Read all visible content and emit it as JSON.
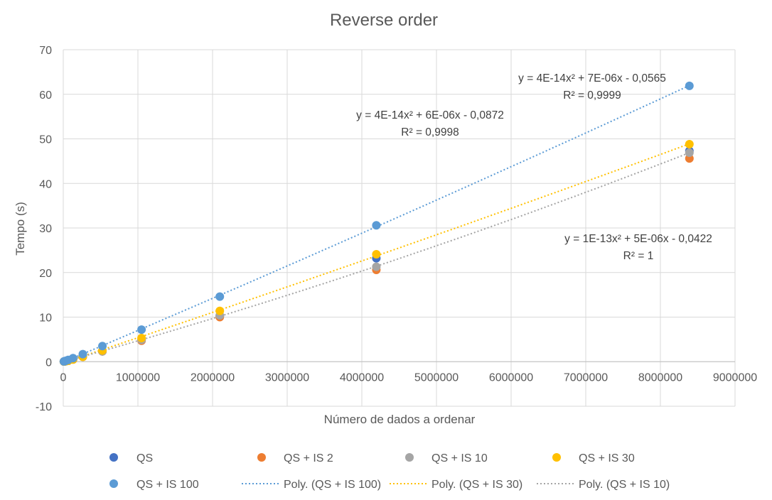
{
  "chart_data": {
    "type": "scatter",
    "title": "Reverse order",
    "xlabel": "Número de dados a ordenar",
    "ylabel": "Tempo (s)",
    "xlim": [
      0,
      9000000
    ],
    "ylim": [
      -10,
      70
    ],
    "x_ticks": [
      "0",
      "1000000",
      "2000000",
      "3000000",
      "4000000",
      "5000000",
      "6000000",
      "7000000",
      "8000000",
      "9000000"
    ],
    "y_ticks": [
      "-10",
      "0",
      "10",
      "20",
      "30",
      "40",
      "50",
      "60",
      "70"
    ],
    "grid": true,
    "legend_position": "bottom",
    "x": [
      8192,
      16384,
      32768,
      65536,
      131072,
      262144,
      524288,
      1048576,
      2097152,
      4194304,
      8388608
    ],
    "series": [
      {
        "name": "QS",
        "color": "#4472C4",
        "values": [
          0.03,
          0.05,
          0.1,
          0.2,
          0.5,
          1.2,
          2.4,
          4.9,
          10.3,
          23.2,
          47.3
        ]
      },
      {
        "name": "QS + IS 2",
        "color": "#ED7D31",
        "values": [
          0.03,
          0.05,
          0.1,
          0.2,
          0.5,
          1.1,
          2.3,
          4.7,
          10.0,
          20.6,
          45.6
        ]
      },
      {
        "name": "QS + IS 10",
        "color": "#A5A5A5",
        "values": [
          0.03,
          0.05,
          0.1,
          0.2,
          0.5,
          1.1,
          2.3,
          4.9,
          10.4,
          21.3,
          46.9
        ]
      },
      {
        "name": "QS + IS 30",
        "color": "#FFC000",
        "values": [
          0.03,
          0.05,
          0.1,
          0.2,
          0.5,
          1.1,
          2.5,
          5.3,
          11.4,
          24.1,
          48.8
        ]
      },
      {
        "name": "QS + IS 100",
        "color": "#5B9BD5",
        "values": [
          0.05,
          0.1,
          0.2,
          0.4,
          0.8,
          1.7,
          3.5,
          7.2,
          14.6,
          30.6,
          61.9
        ]
      }
    ],
    "trendlines": [
      {
        "name": "Poly. (QS + IS 100)",
        "series": "QS + IS 100",
        "color": "#5B9BD5",
        "style": "dotted",
        "equation": "y = 4E-14x² + 7E-06x - 0,0565",
        "r2": "R² = 0,9999"
      },
      {
        "name": "Poly. (QS + IS 30)",
        "series": "QS + IS 30",
        "color": "#FFC000",
        "style": "dotted",
        "equation": "y = 4E-14x² + 6E-06x - 0,0872",
        "r2": "R² = 0,9998"
      },
      {
        "name": "Poly. (QS + IS 10)",
        "series": "QS + IS 10",
        "color": "#A5A5A5",
        "style": "dotted",
        "equation": "y = 1E-13x² + 5E-06x - 0,0422",
        "r2": "R² = 1"
      }
    ]
  },
  "legend": {
    "items": [
      {
        "label": "QS",
        "kind": "marker",
        "color": "#4472C4"
      },
      {
        "label": "QS + IS 2",
        "kind": "marker",
        "color": "#ED7D31"
      },
      {
        "label": "QS + IS 10",
        "kind": "marker",
        "color": "#A5A5A5"
      },
      {
        "label": "QS + IS 30",
        "kind": "marker",
        "color": "#FFC000"
      },
      {
        "label": "QS + IS 100",
        "kind": "marker",
        "color": "#5B9BD5"
      },
      {
        "label": "Poly. (QS + IS 100)",
        "kind": "line",
        "color": "#5B9BD5"
      },
      {
        "label": "Poly. (QS + IS 30)",
        "kind": "line",
        "color": "#FFC000"
      },
      {
        "label": "Poly. (QS + IS 10)",
        "kind": "line",
        "color": "#A5A5A5"
      }
    ]
  }
}
